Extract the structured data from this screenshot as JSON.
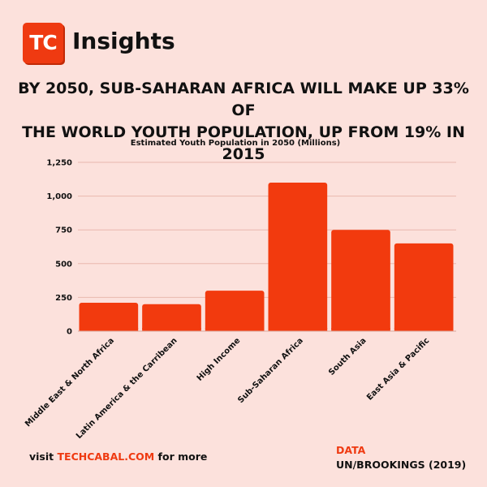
{
  "brand": {
    "logo_text": "TC",
    "name": "Insights",
    "accent_color": "#ef3a11"
  },
  "headline": {
    "line1": "BY 2050, SUB-SAHARAN AFRICA WILL MAKE UP 33% OF",
    "line2": "THE WORLD YOUTH POPULATION, UP FROM 19% IN 2015"
  },
  "chart_data": {
    "type": "bar",
    "title": "Estimated Youth Population in 2050 (Millions)",
    "categories": [
      "Middle East & North Africa",
      "Latin America & the Carribean",
      "High Income",
      "Sub-Saharan Africa",
      "South Asia",
      "East Asia & Pacific"
    ],
    "values": [
      210,
      200,
      300,
      1100,
      750,
      650
    ],
    "ylim": [
      0,
      1250
    ],
    "yticks": [
      0,
      250,
      500,
      750,
      1000,
      1250
    ],
    "ytick_labels": [
      "0",
      "250",
      "500",
      "750",
      "1,000",
      "1,250"
    ],
    "grid": true,
    "bar_color": "#f23a0e"
  },
  "footer": {
    "prefix": "visit ",
    "site": "TECHCABAL.COM",
    "suffix": " for more"
  },
  "source": {
    "label": "DATA",
    "value": "UN/BROOKINGS (2019)"
  }
}
